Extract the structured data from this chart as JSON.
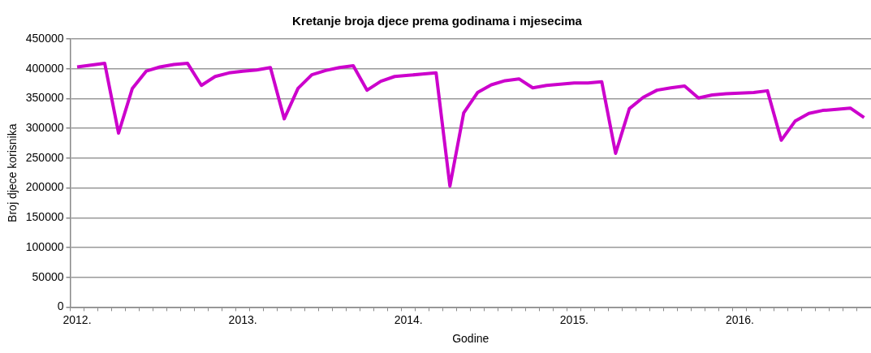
{
  "chart_data": {
    "type": "line",
    "title": "Kretanje broja djece prema godinama i mjesecima",
    "xlabel": "Godine",
    "ylabel": "Broj djece korisnika",
    "categories": [
      "2012.",
      null,
      null,
      null,
      null,
      null,
      null,
      null,
      null,
      null,
      null,
      null,
      "2013.",
      null,
      null,
      null,
      null,
      null,
      null,
      null,
      null,
      null,
      null,
      null,
      "2014.",
      null,
      null,
      null,
      null,
      null,
      null,
      null,
      null,
      null,
      null,
      null,
      "2015.",
      null,
      null,
      null,
      null,
      null,
      null,
      null,
      null,
      null,
      null,
      null,
      "2016.",
      null,
      null,
      null,
      null,
      null,
      null,
      null,
      null,
      null
    ],
    "series": [
      {
        "color": "#cc00cc",
        "values": [
          403000,
          406000,
          409000,
          292000,
          367000,
          396000,
          403000,
          407000,
          409000,
          372000,
          387000,
          393000,
          396000,
          398000,
          402000,
          316000,
          367000,
          390000,
          397000,
          402000,
          405000,
          364000,
          379000,
          387000,
          389000,
          391000,
          393000,
          203000,
          326000,
          360000,
          373000,
          380000,
          383000,
          368000,
          372000,
          374000,
          376000,
          376000,
          378000,
          258000,
          333000,
          352000,
          364000,
          368000,
          371000,
          351000,
          356000,
          358000,
          359000,
          360000,
          363000,
          280000,
          312000,
          325000,
          330000,
          332000,
          334000,
          318000
        ]
      }
    ],
    "ylim": [
      0,
      450000
    ],
    "yticks": [
      0,
      50000,
      100000,
      150000,
      200000,
      250000,
      300000,
      350000,
      400000,
      450000
    ],
    "grid": "y",
    "legend": false,
    "marker": "none",
    "line_style": "solid"
  }
}
